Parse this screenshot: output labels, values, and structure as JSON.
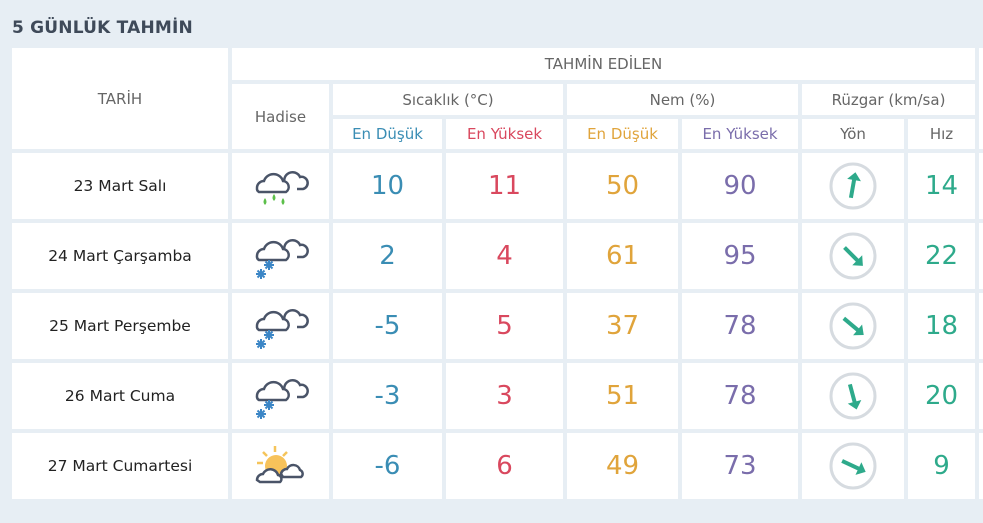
{
  "title": "5 GÜNLÜK TAHMİN",
  "header": {
    "date": "TARİH",
    "forecast": "TAHMİN EDİLEN",
    "event": "Hadise",
    "temp": "Sıcaklık (°C)",
    "humidity": "Nem (%)",
    "wind": "Rüzgar (km/sa)",
    "min": "En Düşük",
    "max": "En Yüksek",
    "dir": "Yön",
    "speed": "Hız"
  },
  "colors": {
    "temp_min": "#3a8db4",
    "temp_max": "#d9485e",
    "hum_min": "#e0a43b",
    "hum_max": "#7a6dab",
    "wind": "#2eaa8b"
  },
  "rows": [
    {
      "date": "23 Mart Salı",
      "icon": "cloud-rain-icon",
      "tmin": "10",
      "tmax": "11",
      "hmin": "50",
      "hmax": "90",
      "wind_dir_deg": 10,
      "speed": "14"
    },
    {
      "date": "24 Mart Çarşamba",
      "icon": "cloud-snow-icon",
      "tmin": "2",
      "tmax": "4",
      "hmin": "61",
      "hmax": "95",
      "wind_dir_deg": 135,
      "speed": "22"
    },
    {
      "date": "25 Mart Perşembe",
      "icon": "cloud-snow-icon",
      "tmin": "-5",
      "tmax": "5",
      "hmin": "37",
      "hmax": "78",
      "wind_dir_deg": 130,
      "speed": "18"
    },
    {
      "date": "26 Mart Cuma",
      "icon": "cloud-snow-icon",
      "tmin": "-3",
      "tmax": "3",
      "hmin": "51",
      "hmax": "78",
      "wind_dir_deg": 165,
      "speed": "20"
    },
    {
      "date": "27 Mart Cumartesi",
      "icon": "sun-cloud-icon",
      "tmin": "-6",
      "tmax": "6",
      "hmin": "49",
      "hmax": "73",
      "wind_dir_deg": 115,
      "speed": "9"
    }
  ]
}
